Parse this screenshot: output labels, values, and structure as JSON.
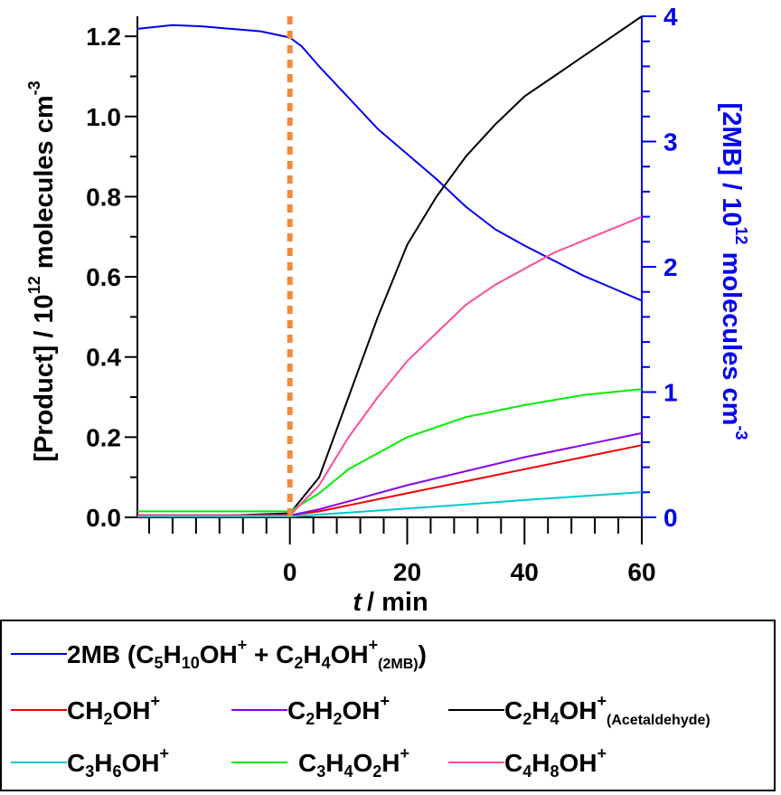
{
  "chart_data": {
    "type": "line",
    "xlabel_italic": "t",
    "xlabel_rest": "/ min",
    "ylabel_left": "[Product] / 10",
    "ylabel_left_exp": "12",
    "ylabel_left_rest": " molecules cm",
    "ylabel_left_exp2": "-3",
    "ylabel_right": "[2MB] / 10",
    "ylabel_right_exp": "12",
    "ylabel_right_rest": " molecules cm",
    "ylabel_right_exp2": "-3",
    "xlim": [
      -26,
      60
    ],
    "ylim_left": [
      0,
      1.25
    ],
    "ylim_right": [
      0,
      4
    ],
    "x_ticks": [
      0,
      20,
      40,
      60
    ],
    "x_tick_labels": [
      "0",
      "20",
      "40",
      "60"
    ],
    "y_left_ticks": [
      0.0,
      0.2,
      0.4,
      0.6,
      0.8,
      1.0,
      1.2
    ],
    "y_left_tick_labels": [
      "0.0",
      "0.2",
      "0.4",
      "0.6",
      "0.8",
      "1.0",
      "1.2"
    ],
    "y_right_ticks": [
      0,
      1,
      2,
      3,
      4
    ],
    "y_right_tick_labels": [
      "0",
      "1",
      "2",
      "3",
      "4"
    ],
    "marker_line_x": 0,
    "marker_line_color": "#f08a3c",
    "grid": false,
    "series": [
      {
        "key": "2MB",
        "axis": "right",
        "color": "#0000ee",
        "x": [
          -26,
          -20,
          -15,
          -10,
          -5,
          0,
          2,
          5,
          10,
          15,
          20,
          25,
          30,
          35,
          40,
          45,
          50,
          55,
          60
        ],
        "y": [
          3.9,
          3.93,
          3.92,
          3.9,
          3.88,
          3.83,
          3.76,
          3.6,
          3.35,
          3.1,
          2.9,
          2.7,
          2.48,
          2.3,
          2.17,
          2.05,
          1.93,
          1.83,
          1.73
        ]
      },
      {
        "key": "CH2OH",
        "axis": "left",
        "color": "#ee0000",
        "x": [
          -26,
          -10,
          0,
          5,
          10,
          20,
          30,
          40,
          50,
          60
        ],
        "y": [
          0.005,
          0.005,
          0.005,
          0.015,
          0.03,
          0.06,
          0.09,
          0.12,
          0.15,
          0.18
        ]
      },
      {
        "key": "C2H2OH",
        "axis": "left",
        "color": "#8a00ee",
        "x": [
          -26,
          -10,
          0,
          5,
          10,
          20,
          30,
          40,
          50,
          60
        ],
        "y": [
          0.005,
          0.005,
          0.005,
          0.02,
          0.04,
          0.08,
          0.115,
          0.15,
          0.18,
          0.21
        ]
      },
      {
        "key": "C2H4OH",
        "axis": "left",
        "color": "#000000",
        "x": [
          -26,
          -10,
          0,
          5,
          10,
          15,
          20,
          25,
          30,
          35,
          40,
          45,
          50,
          55,
          60
        ],
        "y": [
          0.005,
          0.005,
          0.01,
          0.1,
          0.3,
          0.5,
          0.68,
          0.8,
          0.9,
          0.98,
          1.05,
          1.1,
          1.15,
          1.2,
          1.25
        ]
      },
      {
        "key": "C3H6OH",
        "axis": "left",
        "color": "#00c8d2",
        "x": [
          -26,
          -10,
          0,
          10,
          20,
          30,
          40,
          50,
          60
        ],
        "y": [
          0.002,
          0.002,
          0.002,
          0.012,
          0.022,
          0.032,
          0.043,
          0.053,
          0.063
        ]
      },
      {
        "key": "C3H4O2H",
        "axis": "left",
        "color": "#00ee00",
        "x": [
          -26,
          -10,
          0,
          5,
          10,
          15,
          20,
          30,
          40,
          50,
          60
        ],
        "y": [
          0.015,
          0.015,
          0.015,
          0.06,
          0.12,
          0.16,
          0.2,
          0.25,
          0.28,
          0.305,
          0.32
        ]
      },
      {
        "key": "C4H8OH",
        "axis": "left",
        "color": "#ff4b9b",
        "x": [
          -26,
          -10,
          0,
          5,
          10,
          15,
          20,
          25,
          30,
          35,
          40,
          45,
          50,
          55,
          60
        ],
        "y": [
          0.005,
          0.005,
          0.005,
          0.08,
          0.2,
          0.3,
          0.39,
          0.46,
          0.53,
          0.58,
          0.62,
          0.66,
          0.69,
          0.72,
          0.75
        ]
      }
    ]
  },
  "legend": {
    "entries": [
      {
        "key": "2MB",
        "color": "#0000ee",
        "parts": [
          [
            "t",
            "2MB (C"
          ],
          [
            "sub",
            "5"
          ],
          [
            "t",
            "H"
          ],
          [
            "sub",
            "10"
          ],
          [
            "t",
            "OH"
          ],
          [
            "sup",
            "+"
          ],
          [
            "t",
            " + C"
          ],
          [
            "sub",
            "2"
          ],
          [
            "t",
            "H"
          ],
          [
            "sub",
            "4"
          ],
          [
            "t",
            "OH"
          ],
          [
            "sup",
            "+"
          ],
          [
            "sm",
            "(2MB)"
          ],
          [
            "t",
            ")"
          ]
        ]
      },
      {
        "key": "CH2OH",
        "color": "#ee0000",
        "parts": [
          [
            "t",
            "CH"
          ],
          [
            "sub",
            "2"
          ],
          [
            "t",
            "OH"
          ],
          [
            "sup",
            "+"
          ]
        ]
      },
      {
        "key": "C2H2OH",
        "color": "#8a00ee",
        "parts": [
          [
            "t",
            "C"
          ],
          [
            "sub",
            "2"
          ],
          [
            "t",
            "H"
          ],
          [
            "sub",
            "2"
          ],
          [
            "t",
            "OH"
          ],
          [
            "sup",
            "+"
          ]
        ]
      },
      {
        "key": "C2H4OH",
        "color": "#000000",
        "parts": [
          [
            "t",
            "C"
          ],
          [
            "sub",
            "2"
          ],
          [
            "t",
            "H"
          ],
          [
            "sub",
            "4"
          ],
          [
            "t",
            "OH"
          ],
          [
            "sup",
            "+"
          ],
          [
            "sm",
            "(Acetaldehyde)"
          ]
        ]
      },
      {
        "key": "C3H6OH",
        "color": "#00c8d2",
        "parts": [
          [
            "t",
            "C"
          ],
          [
            "sub",
            "3"
          ],
          [
            "t",
            "H"
          ],
          [
            "sub",
            "6"
          ],
          [
            "t",
            "OH"
          ],
          [
            "sup",
            "+"
          ]
        ]
      },
      {
        "key": "C3H4O2H",
        "color": "#00ee00",
        "parts": [
          [
            "t",
            "C"
          ],
          [
            "sub",
            "3"
          ],
          [
            "t",
            "H"
          ],
          [
            "sub",
            "4"
          ],
          [
            "t",
            "O"
          ],
          [
            "sub",
            "2"
          ],
          [
            "t",
            "H"
          ],
          [
            "sup",
            "+"
          ]
        ]
      },
      {
        "key": "C4H8OH",
        "color": "#ff4b9b",
        "parts": [
          [
            "t",
            "C"
          ],
          [
            "sub",
            "4"
          ],
          [
            "t",
            "H"
          ],
          [
            "sub",
            "8"
          ],
          [
            "t",
            "OH"
          ],
          [
            "sup",
            "+"
          ]
        ]
      }
    ]
  }
}
